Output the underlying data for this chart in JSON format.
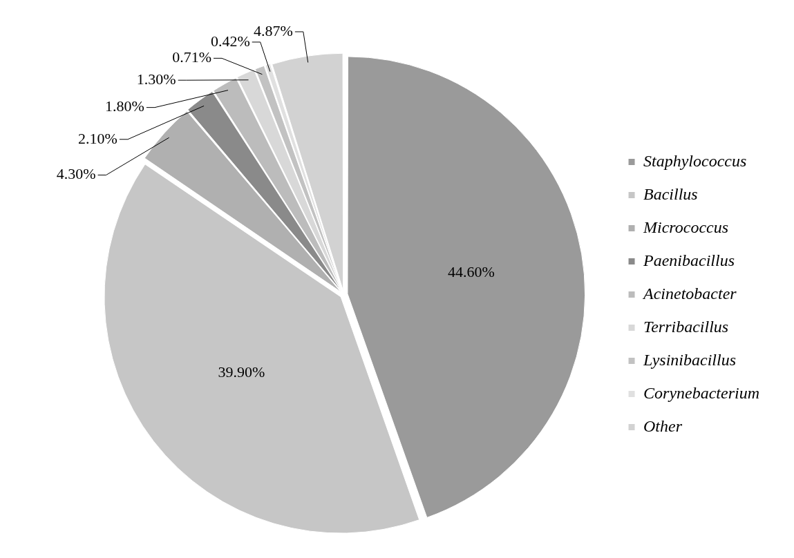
{
  "chart_data": {
    "type": "pie",
    "categories": [
      "Staphylococcus",
      "Bacillus",
      "Micrococcus",
      "Paenibacillus",
      "Acinetobacter",
      "Terribacillus",
      "Lysinibacillus",
      "Corynebacterium",
      "Other"
    ],
    "values": [
      44.6,
      39.9,
      4.3,
      2.1,
      1.8,
      1.3,
      0.71,
      0.42,
      4.87
    ],
    "colors": [
      "#9a9a9a",
      "#c6c6c6",
      "#b0b0b0",
      "#8a8a8a",
      "#bcbcbc",
      "#d8d8d8",
      "#c2c2c2",
      "#e0e0e0",
      "#d2d2d2"
    ],
    "value_labels": [
      "44.60%",
      "39.90%",
      "4.30%",
      "2.10%",
      "1.80%",
      "1.30%",
      "0.71%",
      "0.42%",
      "4.87%"
    ],
    "legend": "right"
  }
}
